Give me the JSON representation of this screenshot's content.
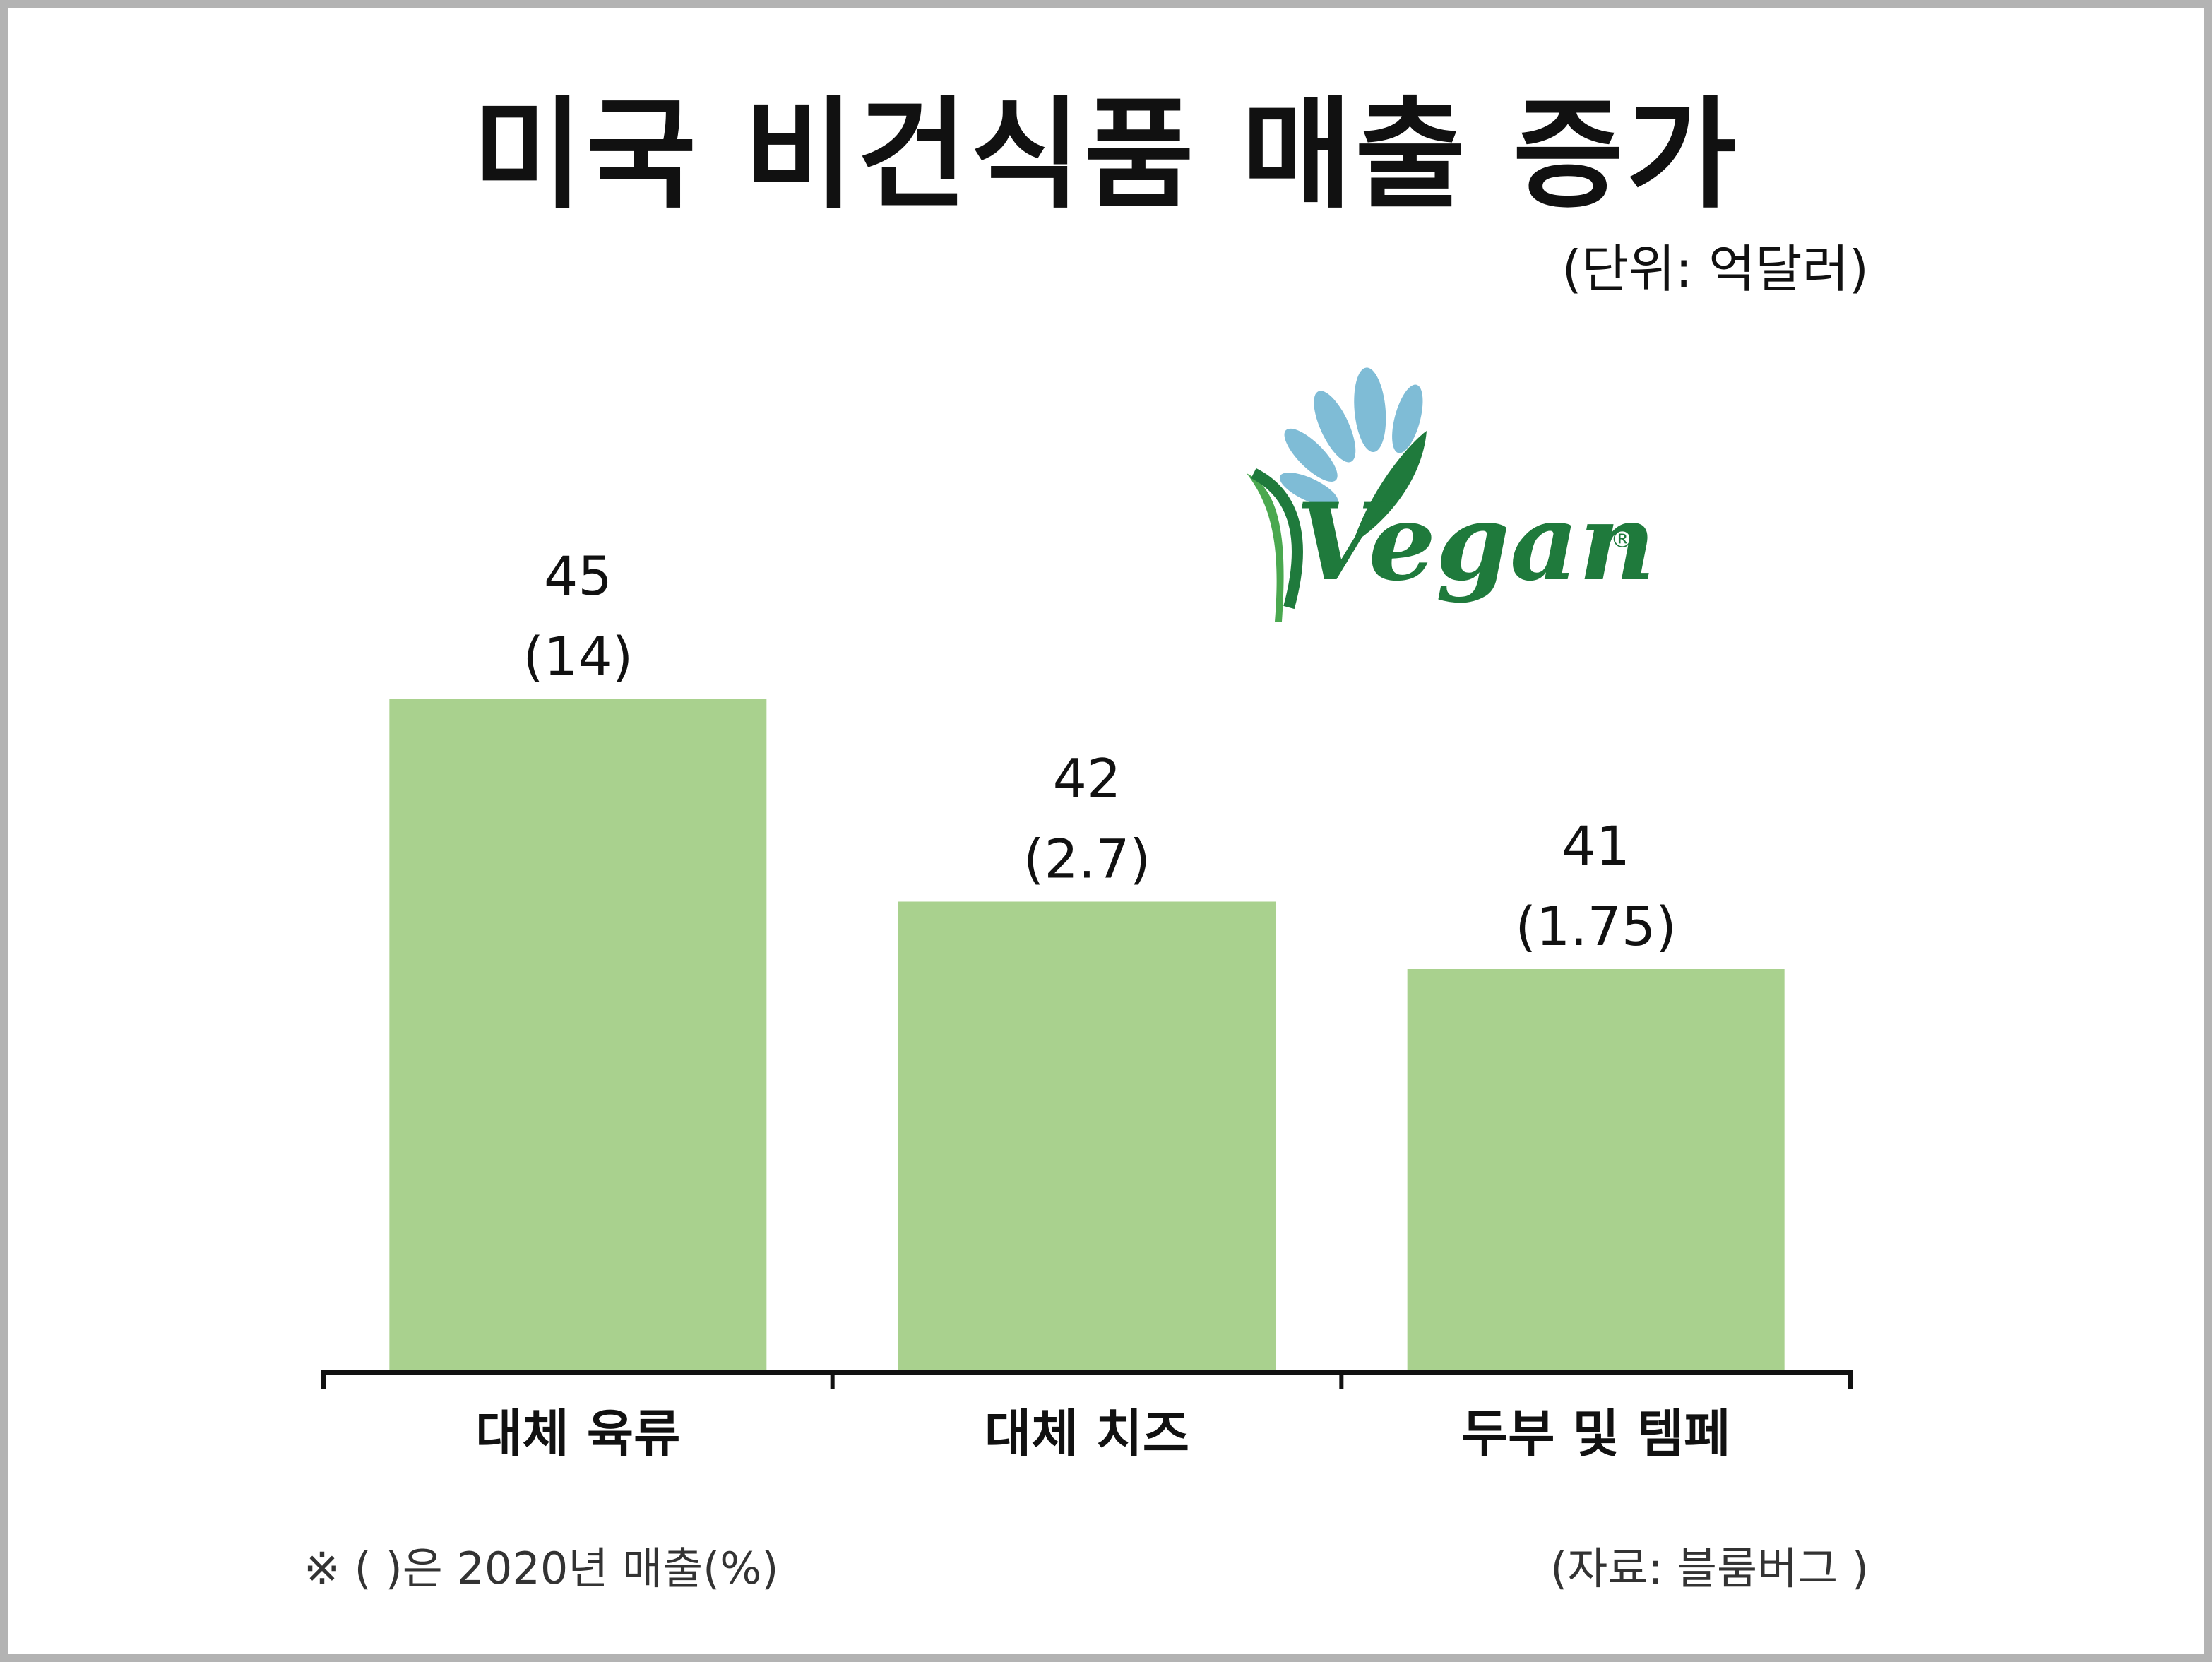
{
  "title": "미국 비건식품 매출 증가",
  "unit_label": "(단위: 억달러)",
  "footnote": "※ ( )은 2020년 매출(%)",
  "source": "(자료: 블룸버그 )",
  "logo": {
    "text": "Vegan",
    "registered_mark": "®",
    "icon": "vegan-leaf-logo"
  },
  "colors": {
    "bar": "#a9d18e",
    "axis": "#111111",
    "logo_dark_green": "#1f7a3c",
    "logo_light_green": "#4aa84f",
    "logo_blue": "#7fbcd6"
  },
  "chart_data": {
    "type": "bar",
    "categories": [
      "대체 육류",
      "대체 치즈",
      "두부 및 템페"
    ],
    "values": [
      45,
      42,
      41
    ],
    "value_labels": [
      "45",
      "42",
      "41"
    ],
    "sub_labels": [
      "(14)",
      "(2.7)",
      "(1.75)"
    ],
    "title": "미국 비건식품 매출 증가",
    "ylabel": "",
    "xlabel": "",
    "ylim": [
      30,
      45
    ],
    "grid": false,
    "legend": "none"
  }
}
